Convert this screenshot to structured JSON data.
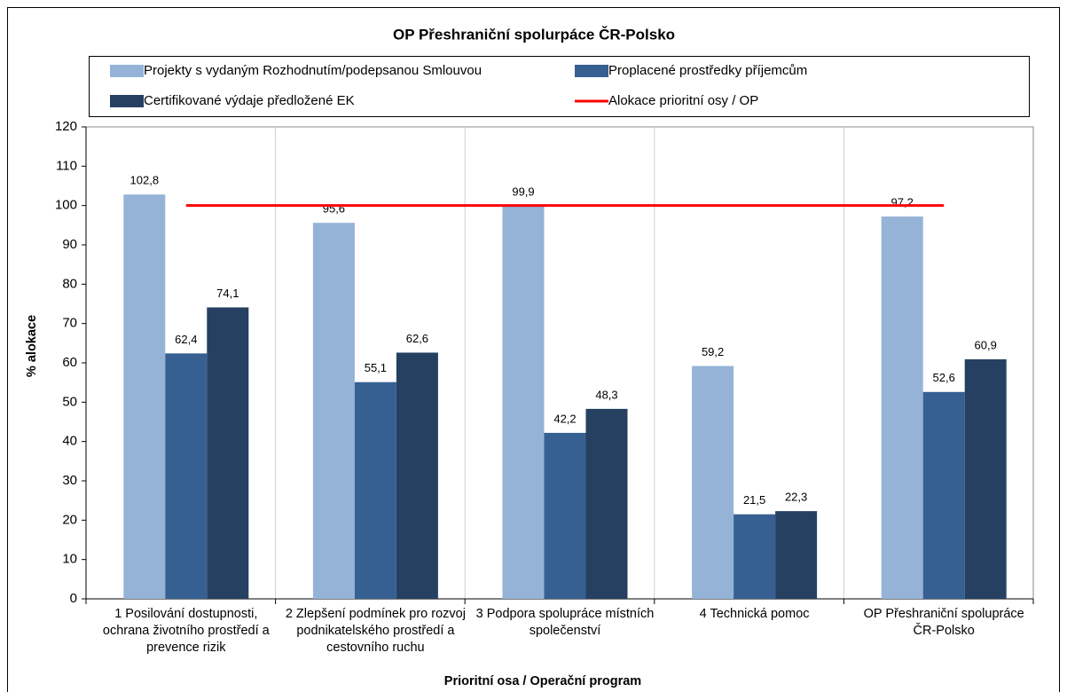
{
  "chart_data": {
    "type": "bar",
    "title": "OP Přeshraniční spolurpáce ČR-Polsko",
    "x_label": "Prioritní osa / Operační program",
    "y_label": "% alokace",
    "categories": [
      "1 Posilování dostupnosti, ochrana životního prostředí a prevence rizik",
      "2 Zlepšení podmínek pro rozvoj podnikatelského prostředí a cestovního ruchu",
      "3 Podpora spolupráce místních společenství",
      "4 Technická pomoc",
      "OP Přeshraniční spolupráce ČR-Polsko"
    ],
    "series": [
      {
        "name": "Projekty s vydaným Rozhodnutím/podepsanou  Smlouvou",
        "color": "#95b3d7",
        "values": [
          102.8,
          95.6,
          99.9,
          59.2,
          97.2
        ],
        "value_labels": [
          "102,8",
          "95,6",
          "99,9",
          "59,2",
          "97,2"
        ]
      },
      {
        "name": "Proplacené prostředky příjemcům",
        "color": "#376092",
        "values": [
          62.4,
          55.1,
          42.2,
          21.5,
          52.6
        ],
        "value_labels": [
          "62,4",
          "55,1",
          "42,2",
          "21,5",
          "52,6"
        ]
      },
      {
        "name": "Certifikované výdaje předložené EK",
        "color": "#254061",
        "values": [
          74.1,
          62.6,
          48.3,
          22.3,
          60.9
        ],
        "value_labels": [
          "74,1",
          "62,6",
          "48,3",
          "22,3",
          "60,9"
        ]
      },
      {
        "name": "Alokace prioritní osy / OP",
        "color": "#ff0000",
        "type": "line",
        "values": [
          100,
          100,
          100,
          100,
          100
        ]
      }
    ],
    "ylim": [
      0,
      120
    ],
    "yticks": [
      0,
      10,
      20,
      30,
      40,
      50,
      60,
      70,
      80,
      90,
      100,
      110,
      120
    ],
    "grid": true
  }
}
